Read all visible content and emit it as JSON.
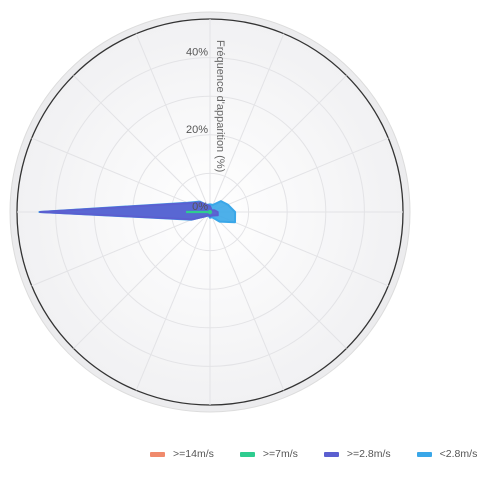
{
  "chart_data": {
    "type": "polar-area",
    "radial_axis": {
      "title": "Fréquence d'apparition (%)",
      "ticks": [
        {
          "value": 0,
          "label": "0%"
        },
        {
          "value": 20,
          "label": "20%"
        },
        {
          "value": 40,
          "label": "40%"
        }
      ],
      "max": 50
    },
    "directions": 16,
    "grid": true,
    "legend_position": "bottom-right",
    "series": [
      {
        "name": ">=14m/s",
        "color": "#f08a6c",
        "values": [
          0,
          0,
          0,
          0,
          0,
          0,
          0,
          0,
          0,
          0,
          0,
          0,
          0,
          0,
          0,
          0
        ]
      },
      {
        "name": ">=7m/s",
        "color": "#2ecc8f",
        "values": [
          0,
          0,
          0,
          0,
          0,
          0,
          0,
          0,
          0,
          0,
          0,
          0,
          0.5,
          0,
          0,
          0
        ]
      },
      {
        "name": ">=2.8m/s",
        "color": "#5b5fd0",
        "values": [
          1.5,
          0.8,
          0.6,
          1.2,
          2.0,
          2.2,
          1.3,
          1.0,
          1.2,
          0.8,
          1.5,
          5.0,
          44.0,
          6.0,
          3.5,
          2.0
        ]
      },
      {
        "name": "<2.8m/s",
        "color": "#3aa7e8",
        "values": [
          2.0,
          2.0,
          4.0,
          5.0,
          6.5,
          7.0,
          3.5,
          1.5,
          1.5,
          1.0,
          1.5,
          5.2,
          44.2,
          6.3,
          3.8,
          2.0
        ]
      }
    ]
  }
}
